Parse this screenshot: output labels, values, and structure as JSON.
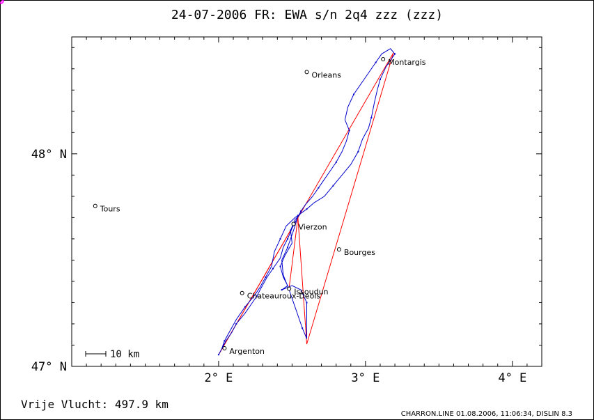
{
  "title": "24-07-2006   FR: EWA s/n 2q4   zzz (zzz)",
  "footer_left": "Vrije Vlucht:  497.9 km",
  "footer_right": "CHARRON.LINE 01.08.2006, 11:06:34, DISLIN 8.3",
  "scale_bar_label": "10 km",
  "axes": {
    "lon_range": [
      1.0,
      4.2
    ],
    "lat_range": [
      47.0,
      48.55
    ],
    "x_ticks": [
      {
        "v": 2.0,
        "label": "2° E"
      },
      {
        "v": 3.0,
        "label": "3° E"
      },
      {
        "v": 4.0,
        "label": "4° E"
      }
    ],
    "y_ticks": [
      {
        "v": 47.0,
        "label": "47° N"
      },
      {
        "v": 48.0,
        "label": "48° N"
      }
    ]
  },
  "cities": [
    {
      "name": "Montargis",
      "lon": 3.12,
      "lat": 48.445
    },
    {
      "name": "Orleans",
      "lon": 2.6,
      "lat": 48.385
    },
    {
      "name": "Tours",
      "lon": 1.16,
      "lat": 47.755
    },
    {
      "name": "Vierzon",
      "lon": 2.51,
      "lat": 47.67
    },
    {
      "name": "Bourges",
      "lon": 2.82,
      "lat": 47.55
    },
    {
      "name": "Chateauroux-Deols",
      "lon": 2.16,
      "lat": 47.345
    },
    {
      "name": "Issoudun",
      "lon": 2.48,
      "lat": 47.365
    },
    {
      "name": "Argenton",
      "lon": 2.04,
      "lat": 47.085
    }
  ],
  "turnpoints": [
    {
      "lon": 2.0,
      "lat": 47.055
    },
    {
      "lon": 2.54,
      "lat": 47.7
    },
    {
      "lon": 3.19,
      "lat": 48.475
    },
    {
      "lon": 2.6,
      "lat": 47.105
    },
    {
      "lon": 2.48,
      "lat": 47.37
    }
  ],
  "task_lines": [
    [
      [
        2.0,
        47.055
      ],
      [
        3.19,
        48.475
      ]
    ],
    [
      [
        2.0,
        47.055
      ],
      [
        2.54,
        47.7
      ],
      [
        2.6,
        47.105
      ],
      [
        3.19,
        48.475
      ]
    ],
    [
      [
        2.54,
        47.7
      ],
      [
        2.48,
        47.37
      ]
    ]
  ],
  "track": [
    [
      2.0,
      47.055
    ],
    [
      2.05,
      47.12
    ],
    [
      2.09,
      47.16
    ],
    [
      2.12,
      47.2
    ],
    [
      2.18,
      47.25
    ],
    [
      2.22,
      47.29
    ],
    [
      2.26,
      47.33
    ],
    [
      2.29,
      47.37
    ],
    [
      2.33,
      47.42
    ],
    [
      2.37,
      47.46
    ],
    [
      2.42,
      47.51
    ],
    [
      2.44,
      47.56
    ],
    [
      2.47,
      47.6
    ],
    [
      2.5,
      47.65
    ],
    [
      2.53,
      47.69
    ],
    [
      2.56,
      47.73
    ],
    [
      2.59,
      47.76
    ],
    [
      2.64,
      47.8
    ],
    [
      2.68,
      47.84
    ],
    [
      2.72,
      47.88
    ],
    [
      2.76,
      47.92
    ],
    [
      2.8,
      47.96
    ],
    [
      2.84,
      48.01
    ],
    [
      2.87,
      48.06
    ],
    [
      2.89,
      48.11
    ],
    [
      2.86,
      48.16
    ],
    [
      2.88,
      48.22
    ],
    [
      2.92,
      48.28
    ],
    [
      2.97,
      48.33
    ],
    [
      3.02,
      48.38
    ],
    [
      3.07,
      48.43
    ],
    [
      3.11,
      48.47
    ],
    [
      3.17,
      48.495
    ],
    [
      3.2,
      48.47
    ],
    [
      3.17,
      48.44
    ],
    [
      3.14,
      48.41
    ],
    [
      3.1,
      48.35
    ],
    [
      3.08,
      48.3
    ],
    [
      3.06,
      48.24
    ],
    [
      3.04,
      48.17
    ],
    [
      3.02,
      48.12
    ],
    [
      2.98,
      48.07
    ],
    [
      2.95,
      48.01
    ],
    [
      2.9,
      47.95
    ],
    [
      2.84,
      47.9
    ],
    [
      2.78,
      47.85
    ],
    [
      2.72,
      47.8
    ],
    [
      2.65,
      47.77
    ],
    [
      2.6,
      47.74
    ],
    [
      2.56,
      47.72
    ],
    [
      2.52,
      47.69
    ],
    [
      2.49,
      47.64
    ],
    [
      2.5,
      47.58
    ],
    [
      2.45,
      47.52
    ],
    [
      2.42,
      47.47
    ],
    [
      2.44,
      47.42
    ],
    [
      2.47,
      47.38
    ],
    [
      2.43,
      47.36
    ],
    [
      2.5,
      47.38
    ],
    [
      2.56,
      47.36
    ],
    [
      2.6,
      47.3
    ],
    [
      2.6,
      47.2
    ],
    [
      2.6,
      47.13
    ],
    [
      2.57,
      47.18
    ],
    [
      2.54,
      47.24
    ],
    [
      2.51,
      47.3
    ],
    [
      2.48,
      47.36
    ],
    [
      2.44,
      47.43
    ],
    [
      2.43,
      47.5
    ],
    [
      2.47,
      47.56
    ],
    [
      2.5,
      47.62
    ],
    [
      2.52,
      47.66
    ],
    [
      2.54,
      47.71
    ],
    [
      2.52,
      47.7
    ],
    [
      2.46,
      47.66
    ],
    [
      2.42,
      47.6
    ],
    [
      2.38,
      47.54
    ],
    [
      2.36,
      47.47
    ],
    [
      2.32,
      47.42
    ],
    [
      2.28,
      47.37
    ],
    [
      2.24,
      47.33
    ],
    [
      2.18,
      47.28
    ],
    [
      2.12,
      47.22
    ],
    [
      2.08,
      47.17
    ],
    [
      2.04,
      47.12
    ],
    [
      2.02,
      47.08
    ]
  ]
}
